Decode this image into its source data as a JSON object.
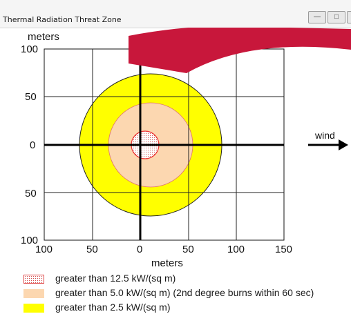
{
  "window": {
    "title": "Thermal Radiation Threat Zone"
  },
  "plot": {
    "y_unit": "meters",
    "x_unit": "meters",
    "y_ticks": [
      "100",
      "50",
      "0",
      "50",
      "100"
    ],
    "x_ticks": [
      "100",
      "50",
      "0",
      "50",
      "100",
      "150"
    ],
    "wind_label": "wind",
    "zones": [
      {
        "name": "red",
        "radius_m": 10,
        "color": "#ff5a5a"
      },
      {
        "name": "orange",
        "radius_m": 55,
        "color": "#fcd7b0"
      },
      {
        "name": "yellow",
        "radius_m": 72,
        "color": "#ffff00"
      }
    ],
    "overlay_color": "#c8173b"
  },
  "legend": [
    {
      "label": "greater than 12.5 kW/(sq m)",
      "swatch": "dotted-red"
    },
    {
      "label": "greater than 5.0 kW/(sq m) (2nd degree burns within 60 sec)",
      "swatch": "#fcd7b0"
    },
    {
      "label": "greater than 2.5 kW/(sq m)",
      "swatch": "#ffff00"
    }
  ]
}
